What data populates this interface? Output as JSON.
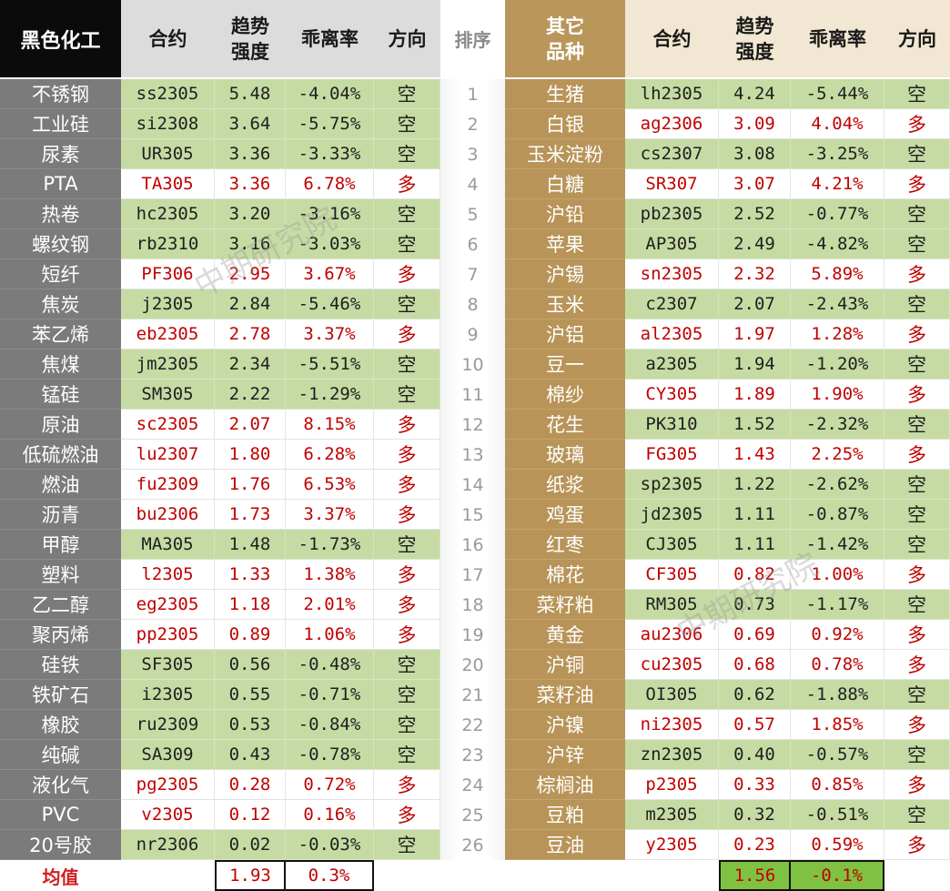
{
  "header": {
    "left_title": "黑色化工",
    "contract": "合约",
    "trend_line1": "趋势",
    "trend_line2": "强度",
    "deviation": "乖离率",
    "direction": "方向",
    "rank": "排序",
    "right_title_line1": "其它",
    "right_title_line2": "品种"
  },
  "left_rows": [
    {
      "name": "不锈钢",
      "contract": "ss2305",
      "trend": "5.48",
      "dev": "-4.04%",
      "dir": "空"
    },
    {
      "name": "工业硅",
      "contract": "si2308",
      "trend": "3.64",
      "dev": "-5.75%",
      "dir": "空"
    },
    {
      "name": "尿素",
      "contract": "UR305",
      "trend": "3.36",
      "dev": "-3.33%",
      "dir": "空"
    },
    {
      "name": "PTA",
      "contract": "TA305",
      "trend": "3.36",
      "dev": "6.78%",
      "dir": "多"
    },
    {
      "name": "热卷",
      "contract": "hc2305",
      "trend": "3.20",
      "dev": "-3.16%",
      "dir": "空"
    },
    {
      "name": "螺纹钢",
      "contract": "rb2310",
      "trend": "3.16",
      "dev": "-3.03%",
      "dir": "空"
    },
    {
      "name": "短纤",
      "contract": "PF306",
      "trend": "2.95",
      "dev": "3.67%",
      "dir": "多"
    },
    {
      "name": "焦炭",
      "contract": "j2305",
      "trend": "2.84",
      "dev": "-5.46%",
      "dir": "空"
    },
    {
      "name": "苯乙烯",
      "contract": "eb2305",
      "trend": "2.78",
      "dev": "3.37%",
      "dir": "多"
    },
    {
      "name": "焦煤",
      "contract": "jm2305",
      "trend": "2.34",
      "dev": "-5.51%",
      "dir": "空"
    },
    {
      "name": "锰硅",
      "contract": "SM305",
      "trend": "2.22",
      "dev": "-1.29%",
      "dir": "空"
    },
    {
      "name": "原油",
      "contract": "sc2305",
      "trend": "2.07",
      "dev": "8.15%",
      "dir": "多"
    },
    {
      "name": "低硫燃油",
      "contract": "lu2307",
      "trend": "1.80",
      "dev": "6.28%",
      "dir": "多"
    },
    {
      "name": "燃油",
      "contract": "fu2309",
      "trend": "1.76",
      "dev": "6.53%",
      "dir": "多"
    },
    {
      "name": "沥青",
      "contract": "bu2306",
      "trend": "1.73",
      "dev": "3.37%",
      "dir": "多"
    },
    {
      "name": "甲醇",
      "contract": "MA305",
      "trend": "1.48",
      "dev": "-1.73%",
      "dir": "空"
    },
    {
      "name": "塑料",
      "contract": "l2305",
      "trend": "1.33",
      "dev": "1.38%",
      "dir": "多"
    },
    {
      "name": "乙二醇",
      "contract": "eg2305",
      "trend": "1.18",
      "dev": "2.01%",
      "dir": "多"
    },
    {
      "name": "聚丙烯",
      "contract": "pp2305",
      "trend": "0.89",
      "dev": "1.06%",
      "dir": "多"
    },
    {
      "name": "硅铁",
      "contract": "SF305",
      "trend": "0.56",
      "dev": "-0.48%",
      "dir": "空"
    },
    {
      "name": "铁矿石",
      "contract": "i2305",
      "trend": "0.55",
      "dev": "-0.71%",
      "dir": "空"
    },
    {
      "name": "橡胶",
      "contract": "ru2309",
      "trend": "0.53",
      "dev": "-0.84%",
      "dir": "空"
    },
    {
      "name": "纯碱",
      "contract": "SA309",
      "trend": "0.43",
      "dev": "-0.78%",
      "dir": "空"
    },
    {
      "name": "液化气",
      "contract": "pg2305",
      "trend": "0.28",
      "dev": "0.72%",
      "dir": "多"
    },
    {
      "name": "PVC",
      "contract": "v2305",
      "trend": "0.12",
      "dev": "0.16%",
      "dir": "多"
    },
    {
      "name": "20号胶",
      "contract": "nr2306",
      "trend": "0.02",
      "dev": "-0.03%",
      "dir": "空"
    }
  ],
  "ranks": [
    "1",
    "2",
    "3",
    "4",
    "5",
    "6",
    "7",
    "8",
    "9",
    "10",
    "11",
    "12",
    "13",
    "14",
    "15",
    "16",
    "17",
    "18",
    "19",
    "20",
    "21",
    "22",
    "23",
    "24",
    "25",
    "26"
  ],
  "right_rows": [
    {
      "name": "生猪",
      "contract": "lh2305",
      "trend": "4.24",
      "dev": "-5.44%",
      "dir": "空"
    },
    {
      "name": "白银",
      "contract": "ag2306",
      "trend": "3.09",
      "dev": "4.04%",
      "dir": "多"
    },
    {
      "name": "玉米淀粉",
      "contract": "cs2307",
      "trend": "3.08",
      "dev": "-3.25%",
      "dir": "空"
    },
    {
      "name": "白糖",
      "contract": "SR307",
      "trend": "3.07",
      "dev": "4.21%",
      "dir": "多"
    },
    {
      "name": "沪铅",
      "contract": "pb2305",
      "trend": "2.52",
      "dev": "-0.77%",
      "dir": "空"
    },
    {
      "name": "苹果",
      "contract": "AP305",
      "trend": "2.49",
      "dev": "-4.82%",
      "dir": "空"
    },
    {
      "name": "沪锡",
      "contract": "sn2305",
      "trend": "2.32",
      "dev": "5.89%",
      "dir": "多"
    },
    {
      "name": "玉米",
      "contract": "c2307",
      "trend": "2.07",
      "dev": "-2.43%",
      "dir": "空"
    },
    {
      "name": "沪铝",
      "contract": "al2305",
      "trend": "1.97",
      "dev": "1.28%",
      "dir": "多"
    },
    {
      "name": "豆一",
      "contract": "a2305",
      "trend": "1.94",
      "dev": "-1.20%",
      "dir": "空"
    },
    {
      "name": "棉纱",
      "contract": "CY305",
      "trend": "1.89",
      "dev": "1.90%",
      "dir": "多"
    },
    {
      "name": "花生",
      "contract": "PK310",
      "trend": "1.52",
      "dev": "-2.32%",
      "dir": "空"
    },
    {
      "name": "玻璃",
      "contract": "FG305",
      "trend": "1.43",
      "dev": "2.25%",
      "dir": "多"
    },
    {
      "name": "纸浆",
      "contract": "sp2305",
      "trend": "1.22",
      "dev": "-2.62%",
      "dir": "空"
    },
    {
      "name": "鸡蛋",
      "contract": "jd2305",
      "trend": "1.11",
      "dev": "-0.87%",
      "dir": "空"
    },
    {
      "name": "红枣",
      "contract": "CJ305",
      "trend": "1.11",
      "dev": "-1.42%",
      "dir": "空"
    },
    {
      "name": "棉花",
      "contract": "CF305",
      "trend": "0.82",
      "dev": "1.00%",
      "dir": "多"
    },
    {
      "name": "菜籽粕",
      "contract": "RM305",
      "trend": "0.73",
      "dev": "-1.17%",
      "dir": "空"
    },
    {
      "name": "黄金",
      "contract": "au2306",
      "trend": "0.69",
      "dev": "0.92%",
      "dir": "多"
    },
    {
      "name": "沪铜",
      "contract": "cu2305",
      "trend": "0.68",
      "dev": "0.78%",
      "dir": "多"
    },
    {
      "name": "菜籽油",
      "contract": "OI305",
      "trend": "0.62",
      "dev": "-1.88%",
      "dir": "空"
    },
    {
      "name": "沪镍",
      "contract": "ni2305",
      "trend": "0.57",
      "dev": "1.85%",
      "dir": "多"
    },
    {
      "name": "沪锌",
      "contract": "zn2305",
      "trend": "0.40",
      "dev": "-0.57%",
      "dir": "空"
    },
    {
      "name": "棕榈油",
      "contract": "p2305",
      "trend": "0.33",
      "dev": "0.85%",
      "dir": "多"
    },
    {
      "name": "豆粕",
      "contract": "m2305",
      "trend": "0.32",
      "dev": "-0.51%",
      "dir": "空"
    },
    {
      "name": "豆油",
      "contract": "y2305",
      "trend": "0.23",
      "dev": "0.59%",
      "dir": "多"
    }
  ],
  "footer": {
    "label": "均值",
    "left_trend_avg": "1.93",
    "left_dev_avg": "0.3%",
    "right_trend_avg": "1.56",
    "right_dev_avg": "-0.1%"
  },
  "colors": {
    "short_bg": "#c6dba3",
    "long_text": "#c00000",
    "left_name_bg": "#7b7b7b",
    "right_name_bg": "#b89458",
    "footer_green": "#7fc241"
  }
}
